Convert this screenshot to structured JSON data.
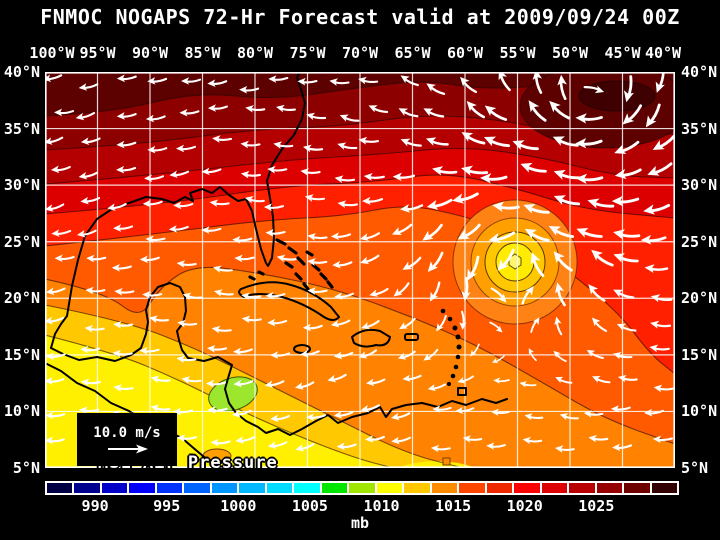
{
  "title": "FNMOC NOGAPS 72-Hr Forecast valid at 2009/09/24 00Z",
  "axes": {
    "lon_top": [
      "100°W",
      "95°W",
      "90°W",
      "85°W",
      "80°W",
      "75°W",
      "70°W",
      "65°W",
      "60°W",
      "55°W",
      "50°W",
      "45°W",
      "40°W"
    ],
    "lat_left": [
      "40°N",
      "35°N",
      "30°N",
      "25°N",
      "20°N",
      "15°N",
      "10°N",
      "5°N"
    ],
    "lat_right": [
      "40°N",
      "35°N",
      "30°N",
      "25°N",
      "20°N",
      "15°N",
      "10°N",
      "5°N"
    ]
  },
  "map": {
    "field_label": "MSL Air Pressure",
    "wind_scale_label": "10.0 m/s"
  },
  "colorbar": {
    "unit": "mb",
    "tick_labels": [
      "990",
      "995",
      "1000",
      "1005",
      "1010",
      "1015",
      "1020",
      "1025"
    ],
    "cell_colors": [
      "#000042",
      "#00008E",
      "#0000C8",
      "#0000FA",
      "#0032FF",
      "#0064FF",
      "#0096FF",
      "#00B9FF",
      "#00DCFF",
      "#00FFFF",
      "#00E600",
      "#A0E600",
      "#FFFF00",
      "#FFC800",
      "#FF8C00",
      "#FF4600",
      "#F02800",
      "#FF0000",
      "#DC0000",
      "#B90000",
      "#960000",
      "#6E0000",
      "#320202"
    ]
  }
}
